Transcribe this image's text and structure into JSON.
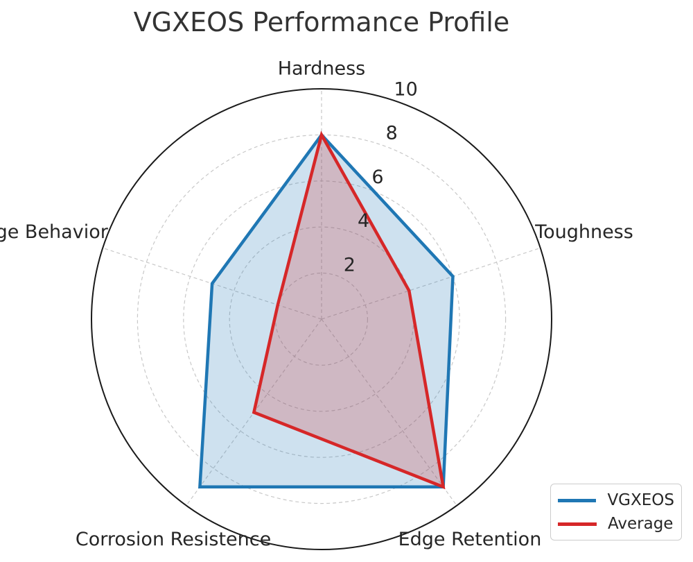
{
  "title": "VGXEOS Performance Profile",
  "chart_data": {
    "type": "radar",
    "title": "VGXEOS Performance Profile",
    "categories": [
      "Hardness",
      "Toughness",
      "Edge Retention",
      "Corrosion Resistence",
      "Edge Behavior"
    ],
    "series": [
      {
        "name": "VGXEOS",
        "values": [
          8,
          6,
          9,
          9,
          5
        ],
        "color": "#1f77b4"
      },
      {
        "name": "Average",
        "values": [
          8,
          4,
          9,
          5,
          2
        ],
        "color": "#d62728"
      }
    ],
    "rlim": [
      0,
      10
    ],
    "rticks": [
      2,
      4,
      6,
      8,
      10
    ],
    "grid": true,
    "legend": "bottom-right"
  }
}
